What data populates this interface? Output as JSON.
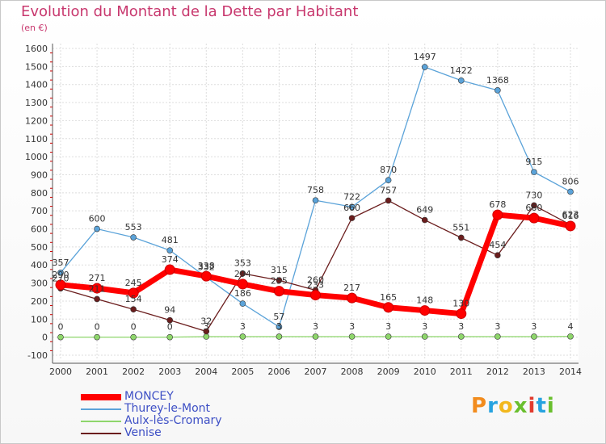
{
  "title": "Evolution du Montant de la Dette par Habitant",
  "unit": "(en €)",
  "logo": {
    "text": "Proxiti",
    "colors": [
      "#f28c1e",
      "#27a3e0",
      "#f2b81e",
      "#6abf2e",
      "#e23b2e",
      "#27a3e0",
      "#6abf2e"
    ]
  },
  "chart_data": {
    "type": "line",
    "title": "Evolution du Montant de la Dette par Habitant",
    "ylabel": "(en €)",
    "x": [
      "2000",
      "2001",
      "2002",
      "2003",
      "2004",
      "2005",
      "2006",
      "2007",
      "2008",
      "2009",
      "2010",
      "2011",
      "2012",
      "2013",
      "2014"
    ],
    "ylim": [
      -100,
      1600
    ],
    "yticks": [
      -100,
      0,
      100,
      200,
      300,
      400,
      500,
      600,
      700,
      800,
      900,
      1000,
      1100,
      1200,
      1300,
      1400,
      1500,
      1600
    ],
    "grid": true,
    "legend_position": "bottom-left",
    "series": [
      {
        "name": "MONCEY",
        "color": "#ff0000",
        "values": [
          290,
          271,
          245,
          374,
          338,
          294,
          255,
          233,
          217,
          165,
          148,
          130,
          678,
          660,
          616
        ]
      },
      {
        "name": "Thurey-le-Mont",
        "color": "#5ba3d9",
        "values": [
          357,
          600,
          553,
          481,
          332,
          186,
          57,
          758,
          722,
          870,
          1497,
          1422,
          1368,
          915,
          806
        ]
      },
      {
        "name": "Aulx-lès-Cromary",
        "color": "#8ed66b",
        "values": [
          0,
          0,
          0,
          0,
          3,
          3,
          3,
          3,
          3,
          3,
          3,
          3,
          3,
          3,
          4
        ]
      },
      {
        "name": "Venise",
        "color": "#6b1d1d",
        "values": [
          270,
          211,
          154,
          94,
          32,
          353,
          315,
          260,
          660,
          757,
          649,
          551,
          454,
          730,
          623
        ]
      }
    ]
  }
}
